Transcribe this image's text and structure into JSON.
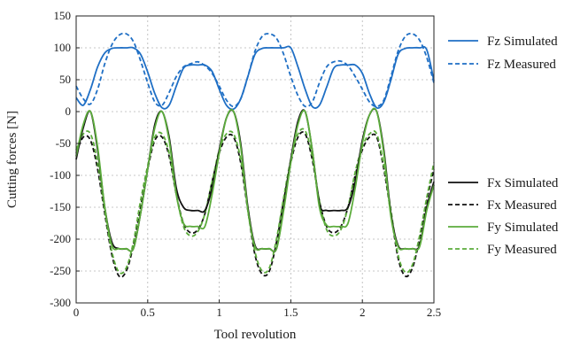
{
  "chart_data": {
    "type": "line",
    "title": "",
    "xlabel": "Tool revolution",
    "ylabel": "Cutting forces [N]",
    "xlim": [
      0,
      2.5
    ],
    "ylim": [
      -300,
      150
    ],
    "x_ticks": [
      0,
      0.5,
      1,
      1.5,
      2,
      2.5
    ],
    "x_tick_labels": [
      "0",
      "0.5",
      "1",
      "1.5",
      "2",
      "2.5"
    ],
    "y_ticks": [
      -300,
      -250,
      -200,
      -150,
      -100,
      -50,
      0,
      50,
      100,
      150
    ],
    "y_tick_labels": [
      "-300",
      "-250",
      "-200",
      "-150",
      "-100",
      "-50",
      "0",
      "50",
      "100",
      "150"
    ],
    "grid": true,
    "legend_placement": "outside-right",
    "series": [
      {
        "name": "Fz Simulated",
        "color": "#1f6fc5",
        "style": "solid",
        "x": [
          0,
          0.05,
          0.1,
          0.15,
          0.2,
          0.25,
          0.3,
          0.35,
          0.4,
          0.45,
          0.5,
          0.55,
          0.6,
          0.65,
          0.7,
          0.75,
          0.8,
          0.85,
          0.9,
          0.95,
          1.0,
          1.05,
          1.1,
          1.15,
          1.2,
          1.25,
          1.3,
          1.35,
          1.4,
          1.45,
          1.5,
          1.55,
          1.6,
          1.65,
          1.7,
          1.75,
          1.8,
          1.85,
          1.9,
          1.95,
          2.0,
          2.05,
          2.1,
          2.15,
          2.2,
          2.25,
          2.3,
          2.35,
          2.4,
          2.45,
          2.5
        ],
        "values": [
          22,
          10,
          35,
          70,
          92,
          99,
          100,
          100,
          100,
          90,
          62,
          28,
          6,
          10,
          40,
          68,
          73,
          73,
          73,
          63,
          35,
          10,
          4,
          20,
          55,
          90,
          99,
          100,
          100,
          100,
          100,
          70,
          35,
          8,
          10,
          38,
          68,
          73,
          73,
          73,
          60,
          28,
          6,
          15,
          50,
          90,
          99,
          100,
          100,
          97,
          48
        ]
      },
      {
        "name": "Fz Measured",
        "color": "#1f6fc5",
        "style": "dashed",
        "x": [
          0,
          0.05,
          0.1,
          0.15,
          0.2,
          0.25,
          0.3,
          0.35,
          0.4,
          0.45,
          0.5,
          0.55,
          0.6,
          0.65,
          0.7,
          0.75,
          0.8,
          0.85,
          0.9,
          0.95,
          1.0,
          1.05,
          1.1,
          1.15,
          1.2,
          1.25,
          1.3,
          1.35,
          1.4,
          1.45,
          1.5,
          1.55,
          1.6,
          1.65,
          1.7,
          1.75,
          1.8,
          1.85,
          1.9,
          1.95,
          2.0,
          2.05,
          2.1,
          2.15,
          2.2,
          2.25,
          2.3,
          2.35,
          2.4,
          2.45,
          2.5
        ],
        "values": [
          40,
          20,
          12,
          35,
          75,
          105,
          120,
          122,
          110,
          80,
          45,
          15,
          10,
          30,
          55,
          70,
          75,
          78,
          72,
          60,
          40,
          18,
          8,
          20,
          55,
          95,
          118,
          122,
          115,
          90,
          55,
          25,
          8,
          15,
          45,
          70,
          78,
          79,
          72,
          55,
          35,
          15,
          8,
          18,
          55,
          95,
          118,
          122,
          112,
          85,
          45
        ]
      },
      {
        "name": "Fx Simulated",
        "color": "#111111",
        "style": "solid",
        "x": [
          0,
          0.05,
          0.1,
          0.15,
          0.2,
          0.25,
          0.3,
          0.35,
          0.4,
          0.45,
          0.5,
          0.55,
          0.6,
          0.65,
          0.7,
          0.75,
          0.8,
          0.85,
          0.9,
          0.95,
          1.0,
          1.05,
          1.1,
          1.15,
          1.2,
          1.25,
          1.3,
          1.35,
          1.4,
          1.45,
          1.5,
          1.55,
          1.6,
          1.65,
          1.7,
          1.75,
          1.8,
          1.85,
          1.9,
          1.95,
          2.0,
          2.05,
          2.1,
          2.15,
          2.2,
          2.25,
          2.3,
          2.35,
          2.4,
          2.45,
          2.5
        ],
        "values": [
          -75,
          -25,
          0,
          -60,
          -150,
          -205,
          -215,
          -215,
          -215,
          -160,
          -90,
          -20,
          0,
          -40,
          -120,
          -150,
          -155,
          -155,
          -155,
          -120,
          -60,
          -10,
          0,
          -50,
          -150,
          -210,
          -215,
          -215,
          -215,
          -150,
          -75,
          -15,
          0,
          -60,
          -145,
          -155,
          -155,
          -155,
          -150,
          -110,
          -45,
          -5,
          0,
          -60,
          -160,
          -210,
          -215,
          -215,
          -210,
          -150,
          -110
        ]
      },
      {
        "name": "Fx Measured",
        "color": "#111111",
        "style": "dashed",
        "x": [
          0,
          0.05,
          0.1,
          0.15,
          0.2,
          0.25,
          0.3,
          0.35,
          0.4,
          0.45,
          0.5,
          0.55,
          0.6,
          0.65,
          0.7,
          0.75,
          0.8,
          0.85,
          0.9,
          0.95,
          1.0,
          1.05,
          1.1,
          1.15,
          1.2,
          1.25,
          1.3,
          1.35,
          1.4,
          1.45,
          1.5,
          1.55,
          1.6,
          1.65,
          1.7,
          1.75,
          1.8,
          1.85,
          1.9,
          1.95,
          2.0,
          2.05,
          2.1,
          2.15,
          2.2,
          2.25,
          2.3,
          2.35,
          2.4,
          2.45,
          2.5
        ],
        "values": [
          -65,
          -40,
          -45,
          -90,
          -160,
          -225,
          -258,
          -250,
          -210,
          -150,
          -90,
          -45,
          -40,
          -70,
          -130,
          -175,
          -190,
          -185,
          -160,
          -110,
          -65,
          -40,
          -40,
          -80,
          -155,
          -225,
          -255,
          -250,
          -205,
          -140,
          -80,
          -40,
          -35,
          -75,
          -140,
          -180,
          -190,
          -180,
          -150,
          -100,
          -60,
          -40,
          -40,
          -90,
          -160,
          -230,
          -258,
          -245,
          -200,
          -140,
          -90
        ]
      },
      {
        "name": "Fy Simulated",
        "color": "#5cac3c",
        "style": "solid",
        "x": [
          0,
          0.05,
          0.1,
          0.15,
          0.2,
          0.25,
          0.3,
          0.35,
          0.4,
          0.45,
          0.5,
          0.55,
          0.6,
          0.65,
          0.7,
          0.75,
          0.8,
          0.85,
          0.9,
          0.95,
          1.0,
          1.05,
          1.1,
          1.15,
          1.2,
          1.25,
          1.3,
          1.35,
          1.4,
          1.45,
          1.5,
          1.55,
          1.6,
          1.65,
          1.7,
          1.75,
          1.8,
          1.85,
          1.9,
          1.95,
          2.0,
          2.05,
          2.1,
          2.15,
          2.2,
          2.25,
          2.3,
          2.35,
          2.4,
          2.45,
          2.5
        ],
        "values": [
          -70,
          -20,
          0,
          -55,
          -150,
          -210,
          -215,
          -215,
          -215,
          -160,
          -90,
          -25,
          0,
          -45,
          -130,
          -175,
          -180,
          -180,
          -180,
          -130,
          -65,
          -10,
          0,
          -55,
          -155,
          -212,
          -215,
          -215,
          -215,
          -155,
          -80,
          -20,
          0,
          -60,
          -150,
          -178,
          -180,
          -180,
          -175,
          -120,
          -50,
          -5,
          0,
          -65,
          -165,
          -212,
          -215,
          -215,
          -212,
          -155,
          -115
        ]
      },
      {
        "name": "Fy Measured",
        "color": "#5cac3c",
        "style": "dashed",
        "x": [
          0,
          0.05,
          0.1,
          0.15,
          0.2,
          0.25,
          0.3,
          0.35,
          0.4,
          0.45,
          0.5,
          0.55,
          0.6,
          0.65,
          0.7,
          0.75,
          0.8,
          0.85,
          0.9,
          0.95,
          1.0,
          1.05,
          1.1,
          1.15,
          1.2,
          1.25,
          1.3,
          1.35,
          1.4,
          1.45,
          1.5,
          1.55,
          1.6,
          1.65,
          1.7,
          1.75,
          1.8,
          1.85,
          1.9,
          1.95,
          2.0,
          2.05,
          2.1,
          2.15,
          2.2,
          2.25,
          2.3,
          2.35,
          2.4,
          2.45,
          2.5
        ],
        "values": [
          -60,
          -35,
          -35,
          -80,
          -155,
          -220,
          -252,
          -245,
          -205,
          -140,
          -85,
          -40,
          -35,
          -65,
          -130,
          -180,
          -195,
          -188,
          -160,
          -110,
          -60,
          -35,
          -35,
          -75,
          -150,
          -220,
          -250,
          -245,
          -200,
          -135,
          -75,
          -35,
          -30,
          -70,
          -140,
          -185,
          -195,
          -185,
          -150,
          -95,
          -55,
          -35,
          -35,
          -85,
          -155,
          -225,
          -252,
          -240,
          -195,
          -135,
          -80
        ]
      }
    ]
  }
}
